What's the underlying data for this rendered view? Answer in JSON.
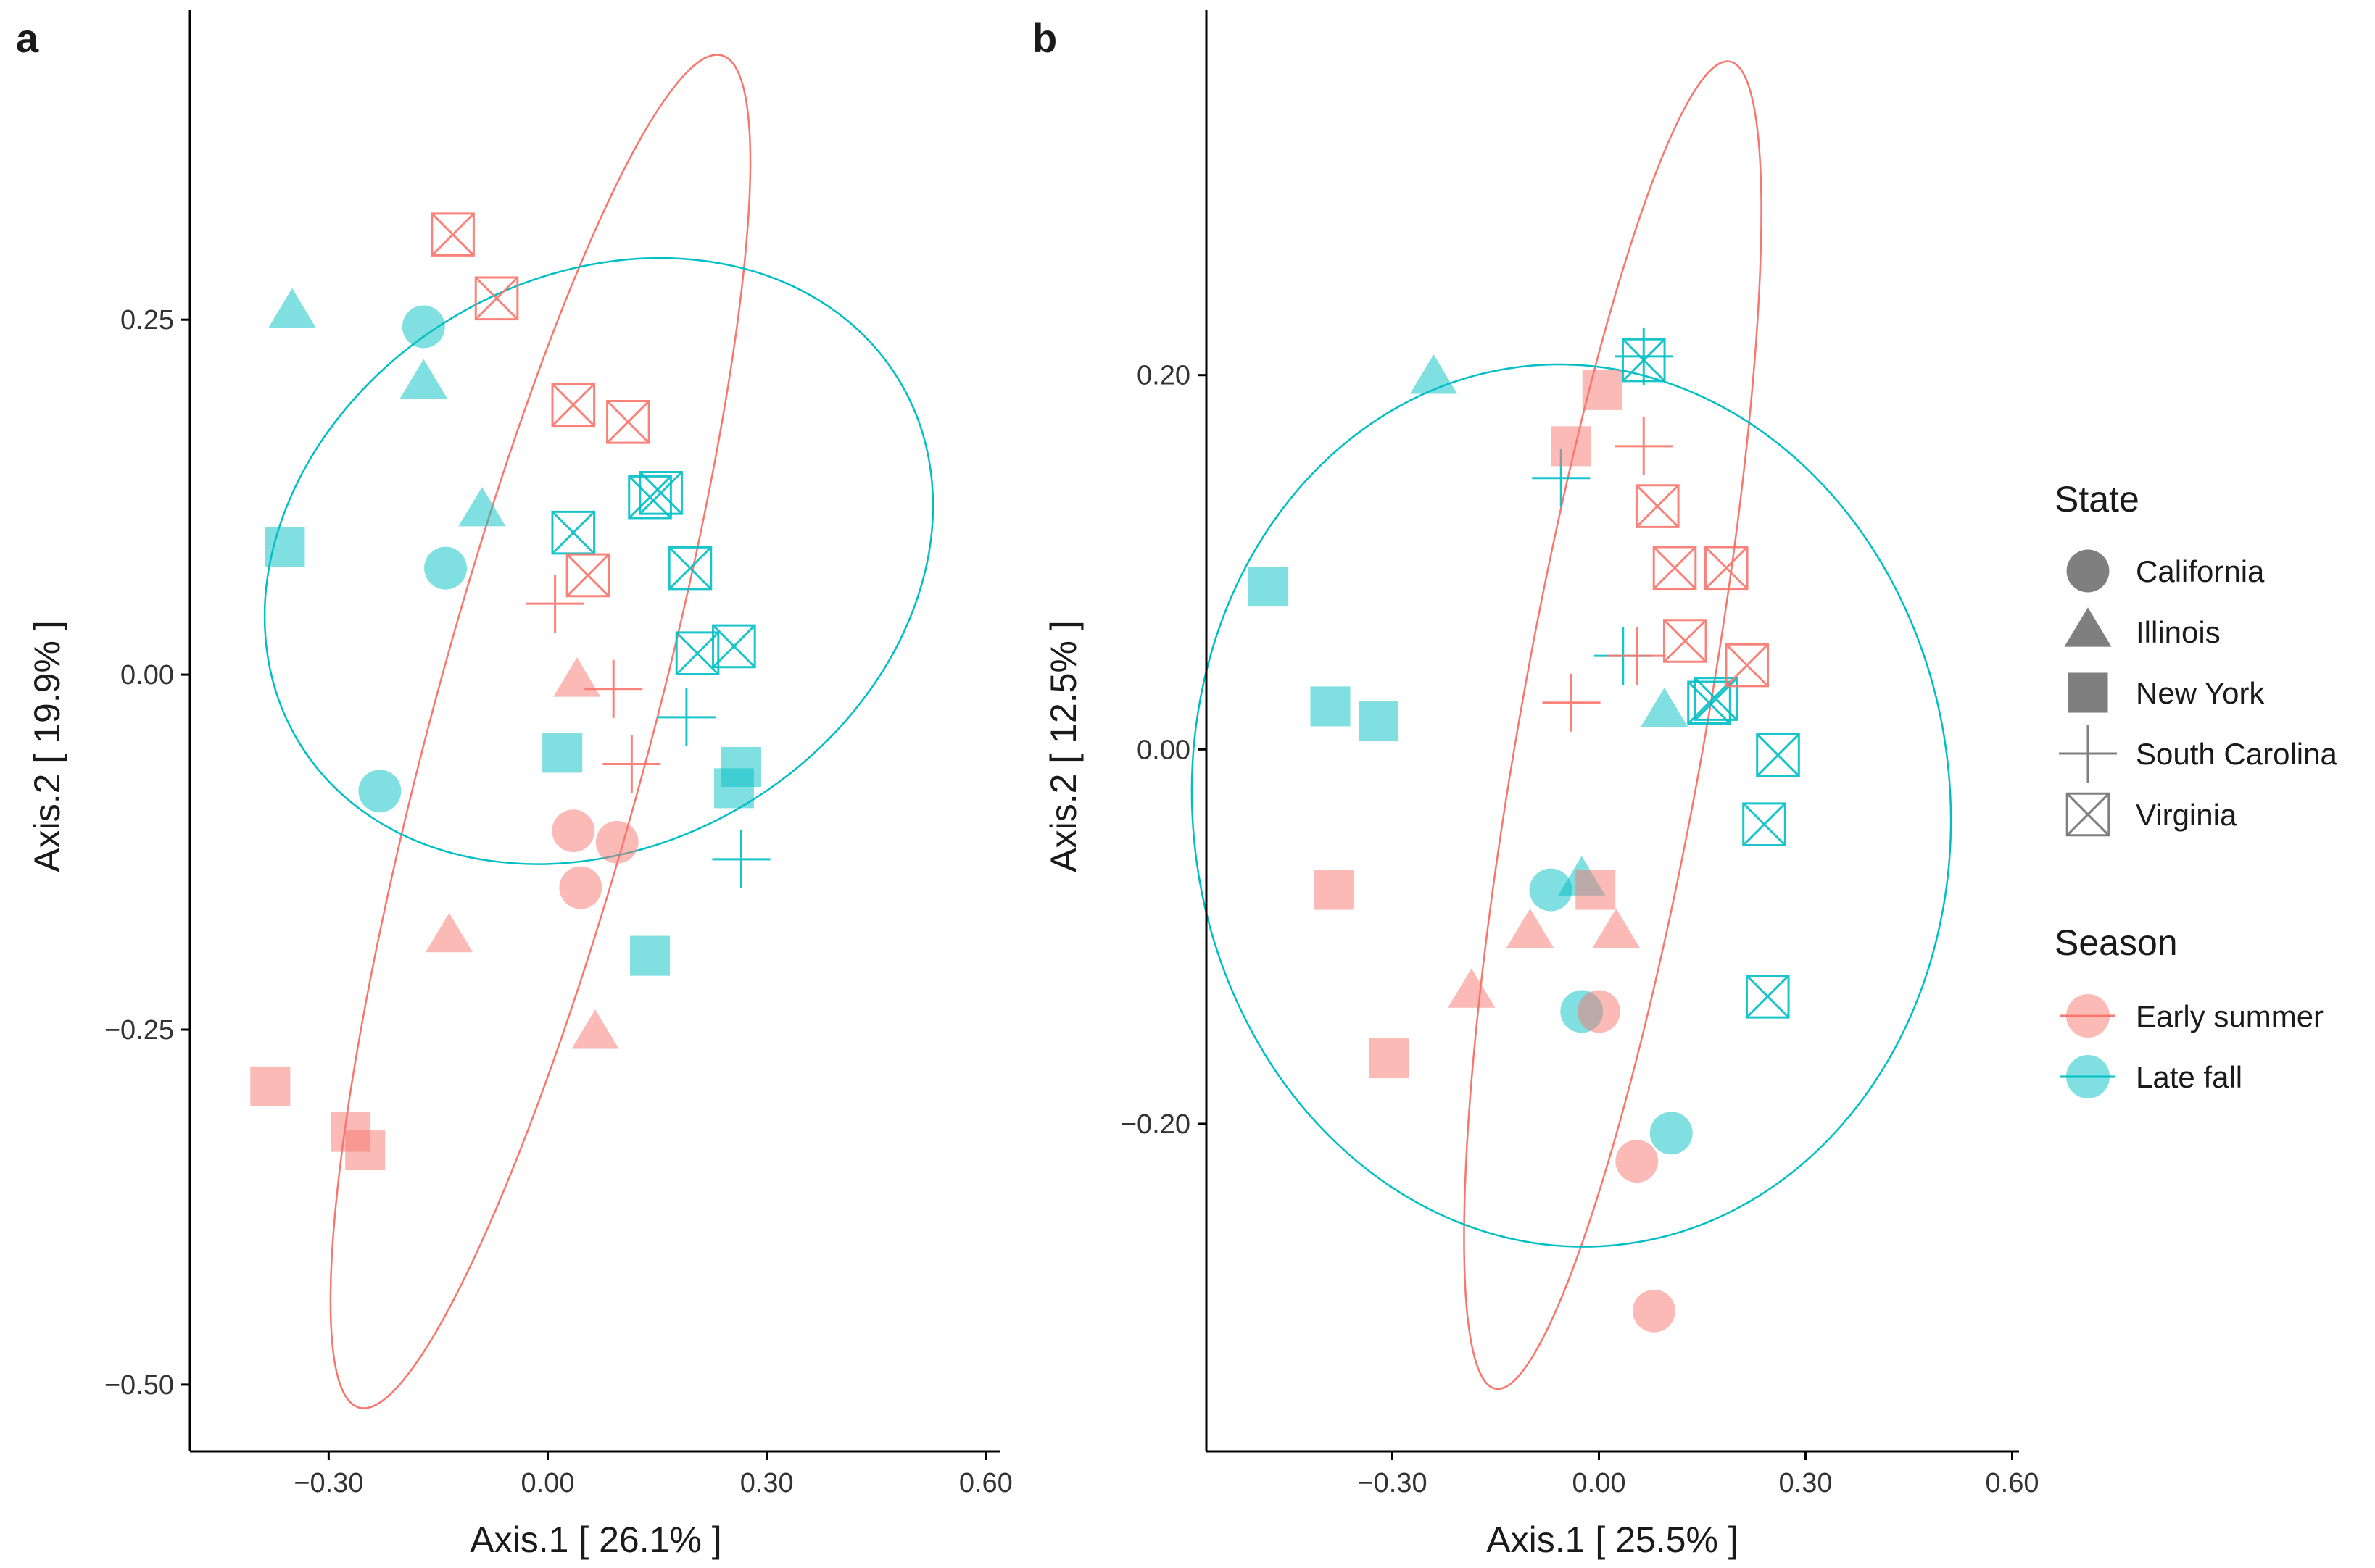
{
  "panels": [
    {
      "tag": "a",
      "chart_data": {
        "type": "scatter",
        "xlabel": "Axis.1 [ 26.1% ]",
        "ylabel": "Axis.2 [ 19.9% ]",
        "xlim": [
          -0.49,
          0.62
        ],
        "ylim": [
          -0.547,
          0.468
        ],
        "xticks": [
          -0.3,
          0.0,
          0.3,
          0.6
        ],
        "xtick_labels": [
          "−0.30",
          "0.00",
          "0.30",
          "0.60"
        ],
        "yticks": [
          0.25,
          0.0,
          -0.25,
          -0.5
        ],
        "ytick_labels": [
          "0.25",
          "0.00",
          "−0.25",
          "−0.50"
        ],
        "grid": false,
        "ellipses": [
          {
            "season": "Early summer",
            "cx": -0.01,
            "cy": -0.04,
            "rx": 0.15,
            "ry": 0.493,
            "angle": 15
          },
          {
            "season": "Late fall",
            "cx": 0.07,
            "cy": 0.08,
            "rx": 0.48,
            "ry": 0.2,
            "angle": -31
          }
        ],
        "points": [
          {
            "x": -0.35,
            "y": 0.255,
            "state": "Illinois",
            "season": "Late fall"
          },
          {
            "x": -0.17,
            "y": 0.205,
            "state": "Illinois",
            "season": "Late fall"
          },
          {
            "x": -0.09,
            "y": 0.115,
            "state": "Illinois",
            "season": "Late fall"
          },
          {
            "x": -0.17,
            "y": 0.245,
            "state": "California",
            "season": "Late fall"
          },
          {
            "x": -0.14,
            "y": 0.075,
            "state": "California",
            "season": "Late fall"
          },
          {
            "x": -0.23,
            "y": -0.082,
            "state": "California",
            "season": "Late fall"
          },
          {
            "x": -0.36,
            "y": 0.09,
            "state": "New York",
            "season": "Late fall"
          },
          {
            "x": 0.02,
            "y": -0.055,
            "state": "New York",
            "season": "Late fall"
          },
          {
            "x": 0.265,
            "y": -0.065,
            "state": "New York",
            "season": "Late fall"
          },
          {
            "x": 0.255,
            "y": -0.08,
            "state": "New York",
            "season": "Late fall"
          },
          {
            "x": 0.14,
            "y": -0.198,
            "state": "New York",
            "season": "Late fall"
          },
          {
            "x": 0.035,
            "y": 0.1,
            "state": "Virginia",
            "season": "Late fall"
          },
          {
            "x": 0.14,
            "y": 0.125,
            "state": "Virginia",
            "season": "Late fall"
          },
          {
            "x": 0.155,
            "y": 0.128,
            "state": "Virginia",
            "season": "Late fall"
          },
          {
            "x": 0.195,
            "y": 0.075,
            "state": "Virginia",
            "season": "Late fall"
          },
          {
            "x": 0.205,
            "y": 0.015,
            "state": "Virginia",
            "season": "Late fall"
          },
          {
            "x": 0.255,
            "y": 0.02,
            "state": "Virginia",
            "season": "Late fall"
          },
          {
            "x": 0.19,
            "y": -0.03,
            "state": "South Carolina",
            "season": "Late fall"
          },
          {
            "x": 0.265,
            "y": -0.13,
            "state": "South Carolina",
            "season": "Late fall"
          },
          {
            "x": -0.13,
            "y": 0.31,
            "state": "Virginia",
            "season": "Early summer"
          },
          {
            "x": -0.07,
            "y": 0.265,
            "state": "Virginia",
            "season": "Early summer"
          },
          {
            "x": 0.035,
            "y": 0.19,
            "state": "Virginia",
            "season": "Early summer"
          },
          {
            "x": 0.11,
            "y": 0.178,
            "state": "Virginia",
            "season": "Early summer"
          },
          {
            "x": 0.055,
            "y": 0.07,
            "state": "Virginia",
            "season": "Early summer"
          },
          {
            "x": 0.01,
            "y": 0.05,
            "state": "South Carolina",
            "season": "Early summer"
          },
          {
            "x": 0.09,
            "y": -0.01,
            "state": "South Carolina",
            "season": "Early summer"
          },
          {
            "x": 0.115,
            "y": -0.063,
            "state": "South Carolina",
            "season": "Early summer"
          },
          {
            "x": 0.04,
            "y": -0.005,
            "state": "Illinois",
            "season": "Early summer"
          },
          {
            "x": -0.135,
            "y": -0.185,
            "state": "Illinois",
            "season": "Early summer"
          },
          {
            "x": 0.065,
            "y": -0.253,
            "state": "Illinois",
            "season": "Early summer"
          },
          {
            "x": 0.035,
            "y": -0.11,
            "state": "California",
            "season": "Early summer"
          },
          {
            "x": 0.095,
            "y": -0.118,
            "state": "California",
            "season": "Early summer"
          },
          {
            "x": 0.045,
            "y": -0.15,
            "state": "California",
            "season": "Early summer"
          },
          {
            "x": -0.38,
            "y": -0.29,
            "state": "New York",
            "season": "Early summer"
          },
          {
            "x": -0.27,
            "y": -0.322,
            "state": "New York",
            "season": "Early summer"
          },
          {
            "x": -0.25,
            "y": -0.335,
            "state": "New York",
            "season": "Early summer"
          }
        ]
      }
    },
    {
      "tag": "b",
      "chart_data": {
        "type": "scatter",
        "xlabel": "Axis.1 [ 25.5% ]",
        "ylabel": "Axis.2 [ 12.5% ]",
        "xlim": [
          -0.57,
          0.61
        ],
        "ylim": [
          -0.375,
          0.395
        ],
        "xticks": [
          -0.3,
          0.0,
          0.3,
          0.6
        ],
        "xtick_labels": [
          "−0.30",
          "0.00",
          "0.30",
          "0.60"
        ],
        "yticks": [
          0.2,
          0.0,
          -0.2
        ],
        "ytick_labels": [
          "0.20",
          "0.00",
          "−0.20"
        ],
        "grid": false,
        "ellipses": [
          {
            "season": "Early summer",
            "cx": 0.02,
            "cy": 0.013,
            "rx": 0.135,
            "ry": 0.36,
            "angle": 10
          },
          {
            "season": "Late fall",
            "cx": -0.04,
            "cy": -0.03,
            "rx": 0.55,
            "ry": 0.236,
            "angle": -6
          }
        ],
        "points": [
          {
            "x": -0.24,
            "y": 0.198,
            "state": "Illinois",
            "season": "Late fall"
          },
          {
            "x": 0.095,
            "y": 0.02,
            "state": "Illinois",
            "season": "Late fall"
          },
          {
            "x": -0.025,
            "y": -0.07,
            "state": "Illinois",
            "season": "Late fall"
          },
          {
            "x": -0.48,
            "y": 0.087,
            "state": "New York",
            "season": "Late fall"
          },
          {
            "x": -0.39,
            "y": 0.023,
            "state": "New York",
            "season": "Late fall"
          },
          {
            "x": -0.32,
            "y": 0.015,
            "state": "New York",
            "season": "Late fall"
          },
          {
            "x": -0.07,
            "y": -0.075,
            "state": "California",
            "season": "Late fall"
          },
          {
            "x": -0.025,
            "y": -0.14,
            "state": "California",
            "season": "Late fall"
          },
          {
            "x": 0.105,
            "y": -0.205,
            "state": "California",
            "season": "Late fall"
          },
          {
            "x": 0.065,
            "y": 0.21,
            "state": "South Carolina",
            "season": "Late fall"
          },
          {
            "x": -0.055,
            "y": 0.145,
            "state": "South Carolina",
            "season": "Late fall"
          },
          {
            "x": 0.035,
            "y": 0.05,
            "state": "South Carolina",
            "season": "Late fall"
          },
          {
            "x": 0.065,
            "y": 0.208,
            "state": "Virginia",
            "season": "Late fall"
          },
          {
            "x": 0.16,
            "y": 0.025,
            "state": "Virginia",
            "season": "Late fall"
          },
          {
            "x": 0.17,
            "y": 0.027,
            "state": "Virginia",
            "season": "Late fall"
          },
          {
            "x": 0.26,
            "y": -0.003,
            "state": "Virginia",
            "season": "Late fall"
          },
          {
            "x": 0.24,
            "y": -0.04,
            "state": "Virginia",
            "season": "Late fall"
          },
          {
            "x": 0.245,
            "y": -0.132,
            "state": "Virginia",
            "season": "Late fall"
          },
          {
            "x": 0.005,
            "y": 0.192,
            "state": "New York",
            "season": "Early summer"
          },
          {
            "x": -0.04,
            "y": 0.162,
            "state": "New York",
            "season": "Early summer"
          },
          {
            "x": -0.385,
            "y": -0.075,
            "state": "New York",
            "season": "Early summer"
          },
          {
            "x": -0.305,
            "y": -0.165,
            "state": "New York",
            "season": "Early summer"
          },
          {
            "x": -0.005,
            "y": -0.075,
            "state": "New York",
            "season": "Early summer"
          },
          {
            "x": 0.065,
            "y": 0.162,
            "state": "South Carolina",
            "season": "Early summer"
          },
          {
            "x": 0.055,
            "y": 0.05,
            "state": "South Carolina",
            "season": "Early summer"
          },
          {
            "x": -0.04,
            "y": 0.025,
            "state": "South Carolina",
            "season": "Early summer"
          },
          {
            "x": 0.085,
            "y": 0.13,
            "state": "Virginia",
            "season": "Early summer"
          },
          {
            "x": 0.11,
            "y": 0.097,
            "state": "Virginia",
            "season": "Early summer"
          },
          {
            "x": 0.185,
            "y": 0.097,
            "state": "Virginia",
            "season": "Early summer"
          },
          {
            "x": 0.125,
            "y": 0.058,
            "state": "Virginia",
            "season": "Early summer"
          },
          {
            "x": 0.215,
            "y": 0.045,
            "state": "Virginia",
            "season": "Early summer"
          },
          {
            "x": -0.1,
            "y": -0.098,
            "state": "Illinois",
            "season": "Early summer"
          },
          {
            "x": 0.025,
            "y": -0.098,
            "state": "Illinois",
            "season": "Early summer"
          },
          {
            "x": -0.185,
            "y": -0.13,
            "state": "Illinois",
            "season": "Early summer"
          },
          {
            "x": 0.0,
            "y": -0.14,
            "state": "California",
            "season": "Early summer"
          },
          {
            "x": 0.055,
            "y": -0.22,
            "state": "California",
            "season": "Early summer"
          },
          {
            "x": 0.08,
            "y": -0.3,
            "state": "California",
            "season": "Early summer"
          }
        ]
      }
    }
  ],
  "legend": {
    "state_title": "State",
    "state_items": [
      {
        "label": "California",
        "shape": "circle"
      },
      {
        "label": "Illinois",
        "shape": "triangle"
      },
      {
        "label": "New York",
        "shape": "square"
      },
      {
        "label": "South Carolina",
        "shape": "plus"
      },
      {
        "label": "Virginia",
        "shape": "boxx"
      }
    ],
    "season_title": "Season",
    "season_items": [
      {
        "label": "Early summer",
        "color": "#F8766D"
      },
      {
        "label": "Late fall",
        "color": "#00BFC4"
      }
    ]
  },
  "colors": {
    "early_summer": "#F8766D",
    "late_fall": "#00BFC4",
    "legend_shape": "#7f7f7f",
    "axis": "#000000"
  }
}
